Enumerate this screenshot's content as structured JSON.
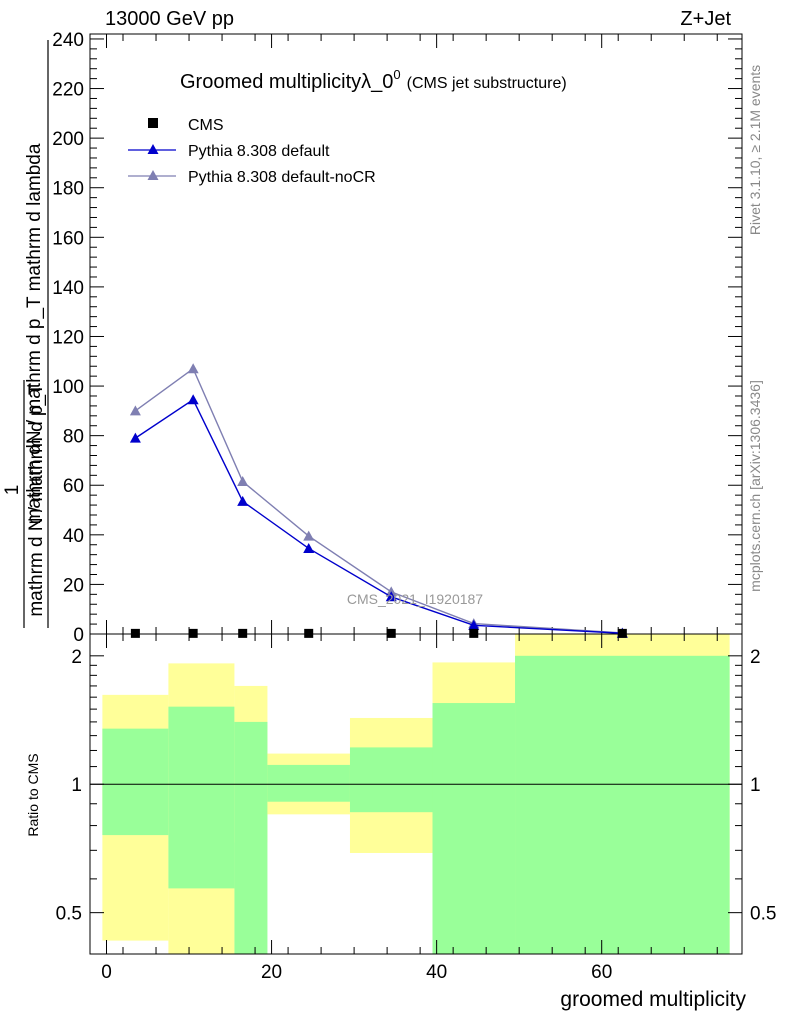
{
  "header": {
    "energy_label": "13000 GeV pp",
    "process_label": "Z+Jet"
  },
  "plot": {
    "title_main": "Groomed multiplicity",
    "title_symbol": "λ_0",
    "title_superscript": "0",
    "title_note": "(CMS jet substructure)",
    "y_label_top": "mathrm dN / mathrm d p_T mathrm d lambda",
    "y_label_numerator": "1",
    "y_label_bottom": "mathrm d N / mathrm d p_T",
    "watermark": "CMS_2021_I1920187",
    "right_text_top": "Rivet 3.1.10, ≥ 2.1M events",
    "right_text_bottom": "mcplots.cern.ch [arXiv:1306.3436]",
    "x_label": "groomed multiplicity",
    "ratio_label": "Ratio to CMS"
  },
  "chart_data": [
    {
      "type": "line",
      "title": "Groomed multiplicityλ_0^0 (CMS jet substructure)",
      "xlabel": "groomed multiplicity",
      "ylabel": "1/(mathrm d N / mathrm d p_T) mathrm dN / mathrm d p_T mathrm d lambda",
      "xlim": [
        -2,
        77
      ],
      "ylim": [
        0,
        242
      ],
      "x_ticks": [
        0,
        20,
        40,
        60
      ],
      "y_ticks": [
        0,
        20,
        40,
        60,
        80,
        100,
        120,
        140,
        160,
        180,
        200,
        220,
        240
      ],
      "legend_position": "top-left",
      "series": [
        {
          "name": "CMS",
          "marker": "square",
          "color": "#000000",
          "x": [
            3.5,
            10.5,
            16.5,
            24.5,
            34.5,
            44.5,
            62.5
          ],
          "y": [
            0.05,
            0.05,
            0.05,
            0.05,
            0.05,
            0.05,
            0.05
          ]
        },
        {
          "name": "Pythia 8.308 default",
          "marker": "triangle",
          "color": "#0000cc",
          "x": [
            3.5,
            10.5,
            16.5,
            24.5,
            34.5,
            44.5,
            62.5
          ],
          "y": [
            79,
            94.5,
            53.5,
            34.5,
            15,
            3.5,
            0.3
          ]
        },
        {
          "name": "Pythia 8.308 default-noCR",
          "marker": "triangle",
          "color": "#7f7fb2",
          "x": [
            3.5,
            10.5,
            16.5,
            24.5,
            34.5,
            44.5,
            62.5
          ],
          "y": [
            90,
            107,
            61.5,
            39.5,
            17,
            4.2,
            0.4
          ]
        }
      ]
    },
    {
      "type": "area",
      "ylabel": "Ratio to CMS",
      "xlabel": "groomed multiplicity",
      "ylim": [
        0.4,
        2.25
      ],
      "y_ticks": [
        0.5,
        1,
        2
      ],
      "scale": "log",
      "reference_line": 1,
      "bins": [
        {
          "x_low": -0.5,
          "x_high": 7.5,
          "green_low": 0.76,
          "green_high": 1.35,
          "yellow_low": 0.43,
          "yellow_high": 1.62
        },
        {
          "x_low": 7.5,
          "x_high": 15.5,
          "green_low": 0.57,
          "green_high": 1.52,
          "yellow_low": 0.4,
          "yellow_high": 1.92
        },
        {
          "x_low": 15.5,
          "x_high": 19.5,
          "green_low": 0.4,
          "green_high": 1.4,
          "yellow_low": 0.73,
          "yellow_high": 1.7
        },
        {
          "x_low": 19.5,
          "x_high": 29.5,
          "green_low": 0.91,
          "green_high": 1.11,
          "yellow_low": 0.85,
          "yellow_high": 1.18
        },
        {
          "x_low": 29.5,
          "x_high": 39.5,
          "green_low": 0.86,
          "green_high": 1.22,
          "yellow_low": 0.69,
          "yellow_high": 1.43
        },
        {
          "x_low": 39.5,
          "x_high": 49.5,
          "green_low": 0.4,
          "green_high": 1.55,
          "yellow_low": 0.54,
          "yellow_high": 1.93
        },
        {
          "x_low": 49.5,
          "x_high": 75.5,
          "green_low": 0.4,
          "green_high": 2.0,
          "yellow_low": 0.4,
          "yellow_high": 2.25
        }
      ]
    }
  ]
}
